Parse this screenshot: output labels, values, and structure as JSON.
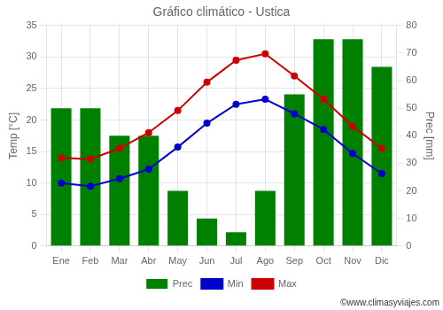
{
  "chart_data": {
    "type": "bar",
    "title": "Gráfico climático - Ustica",
    "categories": [
      "Ene",
      "Feb",
      "Mar",
      "Abr",
      "May",
      "Jun",
      "Jul",
      "Ago",
      "Sep",
      "Oct",
      "Nov",
      "Dic"
    ],
    "series": [
      {
        "name": "Prec",
        "type": "bar",
        "color": "#008000",
        "axis": "y2",
        "values": [
          50,
          50,
          40,
          40,
          20,
          10,
          5,
          20,
          55,
          75,
          75,
          65
        ]
      },
      {
        "name": "Min",
        "type": "line",
        "color": "#0000cc",
        "marker": "circle",
        "values": [
          10,
          9.5,
          10.7,
          12.2,
          15.7,
          19.5,
          22.5,
          23.3,
          21,
          18.5,
          14.7,
          11.5
        ]
      },
      {
        "name": "Max",
        "type": "line",
        "color": "#cc0000",
        "marker": "circle",
        "values": [
          14,
          13.8,
          15.5,
          18,
          21.5,
          26,
          29.5,
          30.5,
          27,
          23.3,
          19,
          15.5
        ]
      }
    ],
    "ylabel": "Temp [°C]",
    "y2label": "Prec [mm]",
    "ylim": [
      0,
      35
    ],
    "yticks": [
      0,
      5,
      10,
      15,
      20,
      25,
      30,
      35
    ],
    "y2lim": [
      0,
      80
    ],
    "y2ticks": [
      0,
      10,
      20,
      30,
      40,
      50,
      60,
      70,
      80
    ],
    "grid": true,
    "legend": "bottom",
    "annotations": [
      "©www.climasyviajes.com"
    ]
  }
}
